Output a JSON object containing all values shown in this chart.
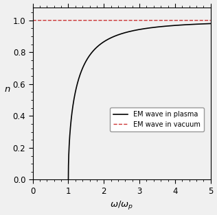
{
  "title": "",
  "xlabel": "$\\omega/\\omega_p$",
  "ylabel": "$n$",
  "xlim": [
    0,
    5
  ],
  "ylim": [
    0.0,
    1.08
  ],
  "yticks": [
    0.0,
    0.2,
    0.4,
    0.6,
    0.8,
    1.0
  ],
  "xticks": [
    0,
    1,
    2,
    3,
    4,
    5
  ],
  "line_em_plasma_color": "#000000",
  "line_em_vacuum_color": "#cc3333",
  "line_em_plasma_lw": 1.2,
  "line_em_vacuum_lw": 1.0,
  "legend_em_plasma": "EM wave in plasma",
  "legend_em_vacuum": "EM wave in vacuum",
  "background_color": "#f0f0f0",
  "legend_fontsize": 7.0,
  "tick_labelsize": 8.5,
  "axis_labelsize": 9.5
}
